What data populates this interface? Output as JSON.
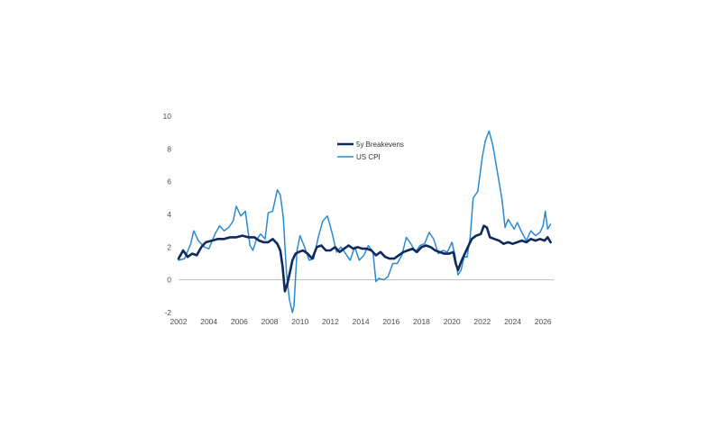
{
  "chart_data": {
    "type": "line",
    "title": "",
    "xlabel": "",
    "ylabel": "",
    "xlim": [
      2002,
      2026.7
    ],
    "ylim": [
      -2,
      10
    ],
    "x_ticks": [
      "2002",
      "2004",
      "2006",
      "2008",
      "2010",
      "2012",
      "2014",
      "2016",
      "2018",
      "2020",
      "2022",
      "2024",
      "2026"
    ],
    "y_ticks": [
      "10",
      "8",
      "6",
      "4",
      "2",
      "0",
      "-2"
    ],
    "grid": false,
    "legend_position": "top-center",
    "series": [
      {
        "name": "5y Breakevens",
        "color": "#0f2a5e",
        "x": [
          2002.0,
          2002.3,
          2002.6,
          2002.9,
          2003.2,
          2003.5,
          2003.8,
          2004.2,
          2004.6,
          2005.0,
          2005.4,
          2005.8,
          2006.2,
          2006.6,
          2007.0,
          2007.3,
          2007.6,
          2007.9,
          2008.2,
          2008.5,
          2008.7,
          2008.85,
          2009.0,
          2009.15,
          2009.3,
          2009.5,
          2009.7,
          2009.9,
          2010.2,
          2010.5,
          2010.8,
          2011.1,
          2011.4,
          2011.7,
          2012.0,
          2012.3,
          2012.6,
          2012.9,
          2013.2,
          2013.5,
          2013.8,
          2014.1,
          2014.4,
          2014.7,
          2015.0,
          2015.3,
          2015.6,
          2015.9,
          2016.2,
          2016.5,
          2016.8,
          2017.1,
          2017.4,
          2017.7,
          2018.0,
          2018.3,
          2018.6,
          2018.9,
          2019.2,
          2019.5,
          2019.8,
          2020.1,
          2020.25,
          2020.4,
          2020.6,
          2020.8,
          2021.0,
          2021.3,
          2021.6,
          2021.9,
          2022.1,
          2022.3,
          2022.5,
          2022.8,
          2023.1,
          2023.4,
          2023.7,
          2024.0,
          2024.3,
          2024.6,
          2024.9,
          2025.2,
          2025.5,
          2025.8,
          2026.1,
          2026.3,
          2026.5
        ],
        "values": [
          1.3,
          1.8,
          1.4,
          1.6,
          1.5,
          2.0,
          2.3,
          2.4,
          2.5,
          2.5,
          2.6,
          2.6,
          2.7,
          2.6,
          2.6,
          2.4,
          2.3,
          2.3,
          2.5,
          2.2,
          1.8,
          0.8,
          -0.7,
          -0.3,
          0.3,
          1.2,
          1.6,
          1.7,
          1.8,
          1.6,
          1.3,
          2.0,
          2.1,
          1.8,
          1.8,
          2.0,
          1.7,
          1.9,
          2.1,
          1.9,
          2.0,
          1.9,
          1.9,
          1.8,
          1.5,
          1.7,
          1.4,
          1.3,
          1.3,
          1.5,
          1.7,
          1.8,
          1.9,
          1.7,
          2.0,
          2.1,
          2.0,
          1.8,
          1.7,
          1.6,
          1.6,
          1.7,
          1.0,
          0.6,
          1.1,
          1.5,
          1.9,
          2.5,
          2.7,
          2.8,
          3.3,
          3.2,
          2.6,
          2.5,
          2.4,
          2.2,
          2.3,
          2.2,
          2.3,
          2.4,
          2.3,
          2.5,
          2.4,
          2.5,
          2.4,
          2.6,
          2.3
        ]
      },
      {
        "name": "US CPI",
        "color": "#2b8ad2",
        "x": [
          2002.0,
          2002.4,
          2002.8,
          2003.0,
          2003.3,
          2003.7,
          2004.0,
          2004.4,
          2004.7,
          2005.0,
          2005.3,
          2005.6,
          2005.8,
          2006.1,
          2006.4,
          2006.7,
          2006.9,
          2007.1,
          2007.4,
          2007.7,
          2007.9,
          2008.2,
          2008.5,
          2008.7,
          2008.9,
          2009.1,
          2009.3,
          2009.5,
          2009.6,
          2009.8,
          2010.0,
          2010.3,
          2010.6,
          2010.9,
          2011.2,
          2011.5,
          2011.8,
          2012.1,
          2012.4,
          2012.7,
          2013.0,
          2013.3,
          2013.6,
          2013.9,
          2014.2,
          2014.5,
          2014.8,
          2015.0,
          2015.2,
          2015.5,
          2015.8,
          2016.1,
          2016.4,
          2016.7,
          2017.0,
          2017.3,
          2017.6,
          2017.9,
          2018.2,
          2018.5,
          2018.8,
          2019.1,
          2019.4,
          2019.7,
          2020.0,
          2020.2,
          2020.4,
          2020.6,
          2020.8,
          2021.0,
          2021.2,
          2021.4,
          2021.7,
          2022.0,
          2022.2,
          2022.45,
          2022.7,
          2022.9,
          2023.1,
          2023.3,
          2023.5,
          2023.7,
          2023.9,
          2024.1,
          2024.3,
          2024.6,
          2024.9,
          2025.2,
          2025.5,
          2025.8,
          2026.0,
          2026.15,
          2026.3,
          2026.5
        ],
        "values": [
          1.2,
          1.3,
          2.2,
          3.0,
          2.4,
          2.0,
          1.9,
          2.8,
          3.3,
          3.0,
          3.2,
          3.6,
          4.5,
          3.9,
          4.2,
          2.1,
          1.8,
          2.4,
          2.8,
          2.5,
          4.1,
          4.2,
          5.5,
          5.2,
          3.8,
          0.5,
          -1.2,
          -2.0,
          -1.6,
          1.8,
          2.7,
          2.0,
          1.2,
          1.3,
          2.6,
          3.6,
          3.9,
          2.9,
          1.7,
          2.0,
          1.6,
          1.2,
          2.0,
          1.2,
          1.5,
          2.1,
          1.7,
          -0.1,
          0.1,
          0.0,
          0.2,
          1.0,
          1.0,
          1.5,
          2.6,
          2.2,
          1.7,
          2.1,
          2.2,
          2.9,
          2.5,
          1.6,
          1.8,
          1.7,
          2.3,
          1.5,
          0.3,
          0.6,
          1.4,
          1.4,
          2.6,
          5.0,
          5.4,
          7.5,
          8.5,
          9.1,
          8.2,
          7.1,
          6.0,
          4.9,
          3.2,
          3.7,
          3.4,
          3.1,
          3.5,
          2.9,
          2.4,
          3.0,
          2.7,
          2.9,
          3.3,
          4.2,
          3.1,
          3.4
        ]
      }
    ]
  }
}
